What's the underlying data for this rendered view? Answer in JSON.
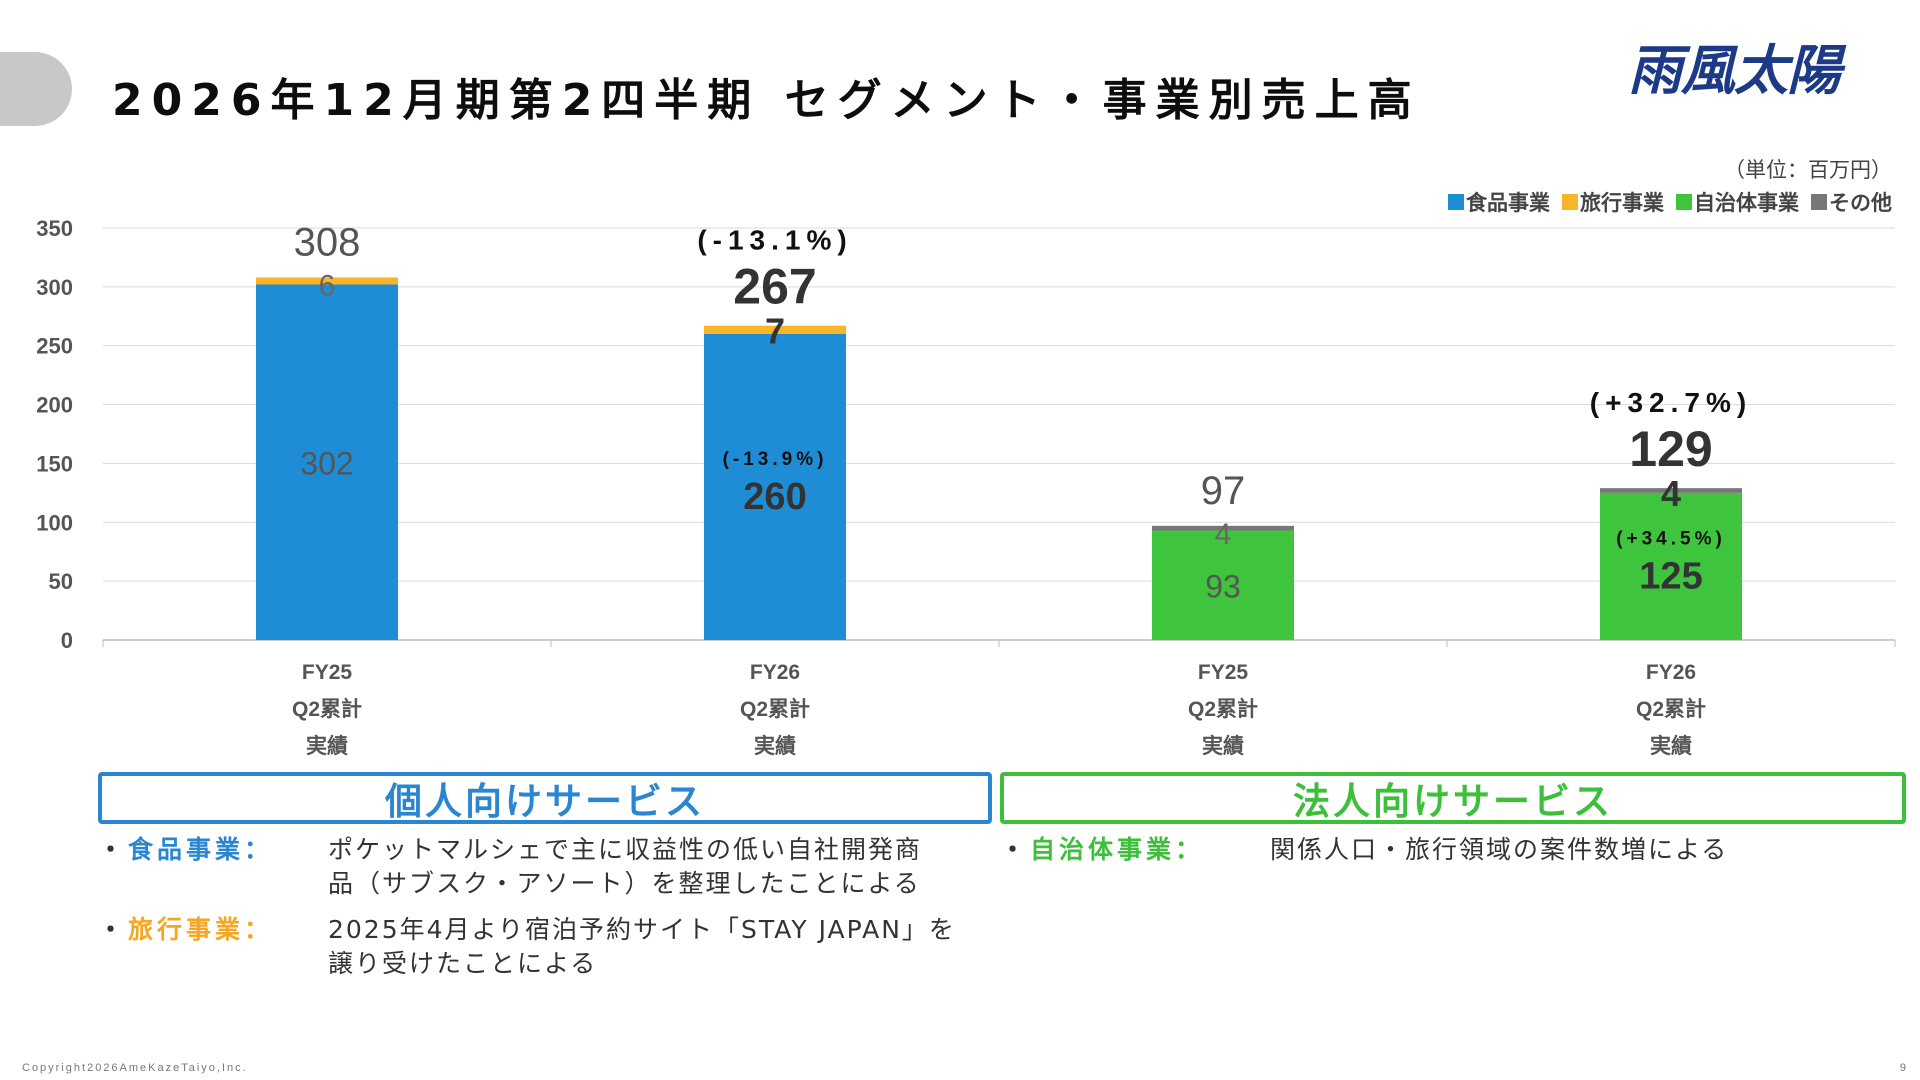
{
  "page": {
    "title": "2026年12月期第2四半期 セグメント・事業別売上高",
    "logo_text": "雨風太陽",
    "unit_label": "（単位：百万円）",
    "footer": "Copyright2026AmeKazeTaiyo,Inc.",
    "page_number": "9"
  },
  "legend": [
    {
      "name": "食品事業",
      "color": "#1f8dd6"
    },
    {
      "name": "旅行事業",
      "color": "#f9b52a"
    },
    {
      "name": "自治体事業",
      "color": "#3fc43e"
    },
    {
      "name": "その他",
      "color": "#777777"
    }
  ],
  "chart_data": {
    "type": "bar",
    "stacked": true,
    "ylim": [
      0,
      350
    ],
    "yticks": [
      "0",
      "50",
      "100",
      "150",
      "200",
      "250",
      "300",
      "350"
    ],
    "grid": true,
    "legend_position": "top-right",
    "categories": [
      [
        "FY25",
        "Q2累計",
        "実績"
      ],
      [
        "FY26",
        "Q2累計",
        "実績"
      ],
      [
        "FY25",
        "Q2累計",
        "実績"
      ],
      [
        "FY26",
        "Q2累計",
        "実績"
      ]
    ],
    "bars": [
      {
        "total": "308",
        "total_change": "",
        "emphasis": false,
        "segments": [
          {
            "series": "食品事業",
            "value": 302,
            "label": "302",
            "change": "",
            "color": "#1f8dd6"
          },
          {
            "series": "旅行事業",
            "value": 6,
            "label": "6",
            "change": "",
            "color": "#f9b52a"
          }
        ]
      },
      {
        "total": "267",
        "total_change": "(-13.1%)",
        "emphasis": true,
        "segments": [
          {
            "series": "食品事業",
            "value": 260,
            "label": "260",
            "change": "(-13.9%)",
            "color": "#1f8dd6"
          },
          {
            "series": "旅行事業",
            "value": 7,
            "label": "7",
            "change": "",
            "color": "#f9b52a"
          }
        ]
      },
      {
        "total": "97",
        "total_change": "",
        "emphasis": false,
        "segments": [
          {
            "series": "自治体事業",
            "value": 93,
            "label": "93",
            "change": "",
            "color": "#3fc43e"
          },
          {
            "series": "その他",
            "value": 4,
            "label": "4",
            "change": "",
            "color": "#777777"
          }
        ]
      },
      {
        "total": "129",
        "total_change": "(+32.7%)",
        "emphasis": true,
        "segments": [
          {
            "series": "自治体事業",
            "value": 125,
            "label": "125",
            "change": "(+34.5%)",
            "color": "#3fc43e"
          },
          {
            "series": "その他",
            "value": 4,
            "label": "4",
            "change": "",
            "color": "#777777"
          }
        ]
      }
    ]
  },
  "segments": {
    "personal": {
      "title": "個人向けサービス",
      "notes": [
        {
          "bullet": "・",
          "label": "食品事業：",
          "label_color": "#2b86d2",
          "lines": [
            "ポケットマルシェで主に収益性の低い自社開発商",
            "品（サブスク・アソート）を整理したことによる"
          ]
        },
        {
          "bullet": "・",
          "label": "旅行事業：",
          "label_color": "#f5a623",
          "lines": [
            "2025年4月より宿泊予約サイト「STAY JAPAN」を",
            "譲り受けたことによる"
          ]
        }
      ]
    },
    "corporate": {
      "title": "法人向けサービス",
      "notes": [
        {
          "bullet": "・",
          "label": "自治体事業：",
          "label_color": "#3dbf3b",
          "lines": [
            "関係人口・旅行領域の案件数増による"
          ]
        }
      ]
    }
  }
}
